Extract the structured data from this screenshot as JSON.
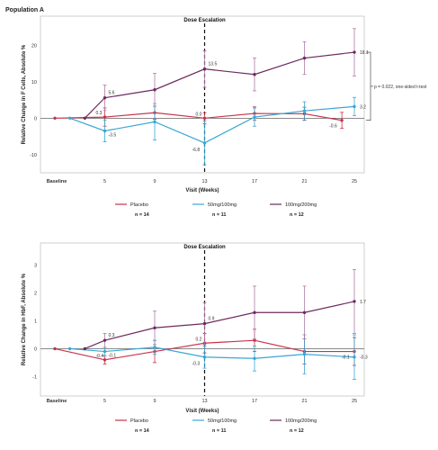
{
  "panel_title": "Population A",
  "chart_data": [
    {
      "type": "line",
      "title": "",
      "xlabel": "Visit (Weeks)",
      "ylabel": "Relative Change in F Cells, Absolute %",
      "categories": [
        "Baseline",
        "5",
        "9",
        "13",
        "17",
        "21",
        "25"
      ],
      "ylim": [
        -15,
        28
      ],
      "yticks": [
        -10,
        0,
        10,
        20
      ],
      "annotation": "Dose Escalation",
      "side_note": "p = 0.022, one-sided t-test",
      "series": [
        {
          "name": "Placebo",
          "n_label": "n = 14",
          "color": "#c8334a",
          "x": [
            0,
            1,
            2,
            3,
            4,
            5,
            5.75
          ],
          "values": [
            0,
            0.3,
            1.5,
            0,
            1.3,
            1.2,
            -0.6
          ],
          "err": [
            0,
            2.5,
            1.8,
            1.5,
            1.8,
            1.8,
            2.2
          ]
        },
        {
          "name": "50mg/100mg",
          "n_label": "n = 11",
          "color": "#38a7d4",
          "x": [
            0.3,
            1,
            2,
            3,
            4,
            5,
            6
          ],
          "values": [
            0,
            -3.5,
            -1,
            -6.8,
            0.3,
            2,
            3.2
          ],
          "err": [
            0,
            3,
            5,
            6,
            2.5,
            2.5,
            2.5
          ]
        },
        {
          "name": "100mg/200mg",
          "n_label": "n = 12",
          "color": "#6e2a5e",
          "err_color": "#b07aa6",
          "x": [
            0.6,
            1,
            2,
            3,
            4,
            5,
            6
          ],
          "values": [
            0,
            5.6,
            7.8,
            13.5,
            12,
            16.5,
            18.1
          ],
          "err": [
            0,
            3.5,
            4.5,
            5,
            4.5,
            4.5,
            6.5
          ]
        }
      ],
      "labels": [
        {
          "series": 0,
          "i": 1,
          "text": "0.3"
        },
        {
          "series": 0,
          "i": 3,
          "text": "0.0"
        },
        {
          "series": 0,
          "i": 6,
          "text": "-0.6"
        },
        {
          "series": 1,
          "i": 1,
          "text": "-3.5"
        },
        {
          "series": 1,
          "i": 3,
          "text": "-6.8"
        },
        {
          "series": 1,
          "i": 6,
          "text": "3.2"
        },
        {
          "series": 2,
          "i": 1,
          "text": "5.6"
        },
        {
          "series": 2,
          "i": 3,
          "text": "13.5"
        },
        {
          "series": 2,
          "i": 6,
          "text": "18.1"
        }
      ]
    },
    {
      "type": "line",
      "title": "",
      "xlabel": "Visit (Weeks)",
      "ylabel": "Relative Change in HbF, Absolute %",
      "categories": [
        "Baseline",
        "5",
        "9",
        "13",
        "17",
        "21",
        "25"
      ],
      "ylim": [
        -1.7,
        3.8
      ],
      "yticks": [
        -1,
        0,
        1,
        2,
        3
      ],
      "annotation": "Dose Escalation",
      "series": [
        {
          "name": "Placebo",
          "n_label": "n = 14",
          "color": "#c8334a",
          "x": [
            0,
            1,
            2,
            3,
            4,
            5,
            6
          ],
          "values": [
            0,
            -0.4,
            -0.1,
            0.2,
            0.3,
            -0.1,
            -0.1
          ],
          "err": [
            0,
            0.15,
            0.4,
            0.35,
            0.4,
            0.45,
            0.5
          ]
        },
        {
          "name": "50mg/100mg",
          "n_label": "n = 11",
          "color": "#38a7d4",
          "x": [
            0.3,
            1,
            2,
            3,
            4,
            5,
            6
          ],
          "values": [
            0,
            -0.1,
            0.05,
            -0.3,
            -0.35,
            -0.2,
            -0.3
          ],
          "err": [
            0,
            0.15,
            0.25,
            0.4,
            0.45,
            0.7,
            0.8
          ]
        },
        {
          "name": "100mg/200mg",
          "n_label": "n = 12",
          "color": "#6e2a5e",
          "err_color": "#b07aa6",
          "x": [
            0.6,
            1,
            2,
            3,
            4,
            5,
            6
          ],
          "values": [
            0,
            0.3,
            0.75,
            0.9,
            1.3,
            1.3,
            1.7
          ],
          "err": [
            0,
            0.25,
            0.6,
            0.75,
            0.95,
            0.95,
            1.15
          ]
        }
      ],
      "labels": [
        {
          "series": 0,
          "i": 1,
          "text": "-0.4"
        },
        {
          "series": 0,
          "i": 3,
          "text": "0.2"
        },
        {
          "series": 0,
          "i": 6,
          "text": "-0.1"
        },
        {
          "series": 1,
          "i": 1,
          "text": "-0.1"
        },
        {
          "series": 1,
          "i": 3,
          "text": "-0.3"
        },
        {
          "series": 1,
          "i": 6,
          "text": "-0.3"
        },
        {
          "series": 2,
          "i": 1,
          "text": "0.3"
        },
        {
          "series": 2,
          "i": 3,
          "text": "0.9"
        },
        {
          "series": 2,
          "i": 6,
          "text": "1.7"
        }
      ]
    }
  ]
}
